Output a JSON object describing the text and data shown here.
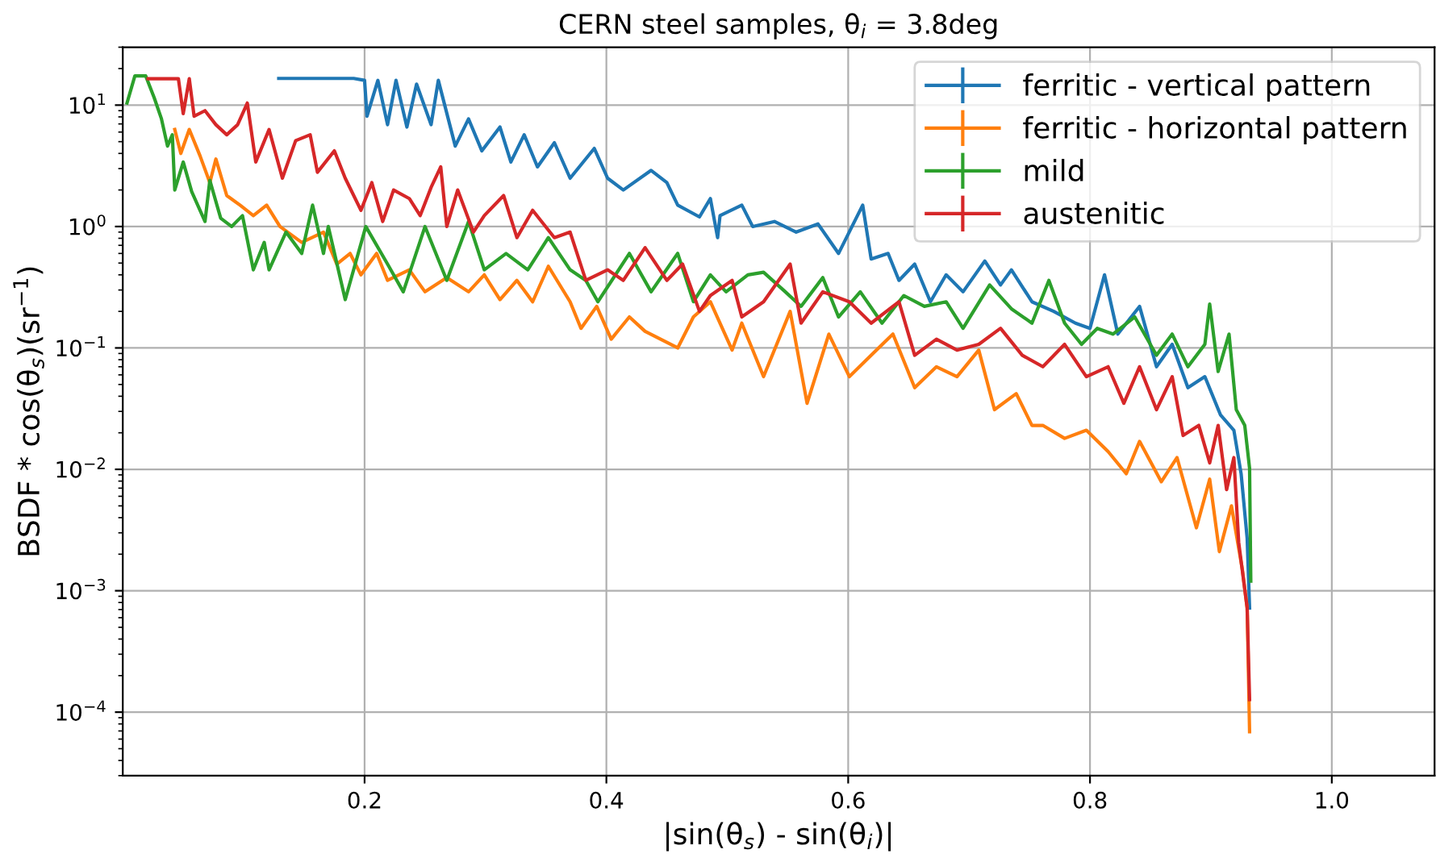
{
  "chart_data": {
    "type": "line",
    "title": "CERN steel samples, θ$_{i}$ = 3.8deg",
    "xlabel": "|sin(θ$_{s}$) - sin(θ$_{i}$)|",
    "ylabel": "BSDF * cos(θ$_{s}$)(sr$^{−1}$)",
    "log": "y",
    "xlim": [
      0.0,
      1.085
    ],
    "xticks": [
      0.2,
      0.4,
      0.6,
      0.8,
      {
        "value": 1,
        "label": "1.0"
      }
    ],
    "ylim": [
      3e-05,
      30
    ],
    "yticks": [
      {
        "value": 0.0001,
        "label": "10$^{−4}$"
      },
      {
        "value": 0.001,
        "label": "10$^{−3}$"
      },
      {
        "value": 0.01,
        "label": "10$^{−2}$"
      },
      {
        "value": 0.1,
        "label": "10$^{−1}$"
      },
      {
        "value": 1,
        "label": "10$^{0}$"
      },
      {
        "value": 10,
        "label": "10$^{1}$"
      }
    ],
    "grid": true,
    "legend": "top right",
    "series": [
      {
        "name": "ferritic - vertical pattern",
        "color": "#1f77b4",
        "x": [
          0.129,
          0.191,
          0.2,
          0.202,
          0.211,
          0.219,
          0.226,
          0.235,
          0.243,
          0.255,
          0.261,
          0.275,
          0.286,
          0.297,
          0.312,
          0.321,
          0.332,
          0.343,
          0.357,
          0.37,
          0.39,
          0.401,
          0.414,
          0.437,
          0.45,
          0.459,
          0.477,
          0.486,
          0.492,
          0.494,
          0.512,
          0.521,
          0.539,
          0.557,
          0.575,
          0.592,
          0.612,
          0.619,
          0.633,
          0.642,
          0.655,
          0.668,
          0.681,
          0.695,
          0.713,
          0.726,
          0.735,
          0.752,
          0.77,
          0.788,
          0.8,
          0.812,
          0.823,
          0.841,
          0.855,
          0.868,
          0.881,
          0.895,
          0.908,
          0.919,
          0.925,
          0.93,
          0.932
        ],
        "values": [
          16.6,
          16.6,
          16,
          8.1,
          16,
          6.9,
          16,
          6.6,
          14.9,
          6.9,
          16,
          4.6,
          7.7,
          4.2,
          6.6,
          3.4,
          5.7,
          3.1,
          4.9,
          2.5,
          4.4,
          2.5,
          2.0,
          2.9,
          2.3,
          1.5,
          1.2,
          1.7,
          0.81,
          1.23,
          1.5,
          1.0,
          1.1,
          0.9,
          1.05,
          0.6,
          1.5,
          0.54,
          0.6,
          0.36,
          0.49,
          0.24,
          0.4,
          0.29,
          0.52,
          0.33,
          0.44,
          0.24,
          0.2,
          0.16,
          0.145,
          0.4,
          0.13,
          0.22,
          0.07,
          0.107,
          0.047,
          0.058,
          0.028,
          0.021,
          0.0092,
          0.0027,
          0.00072
        ]
      },
      {
        "name": "ferritic - horizontal pattern",
        "color": "#ff7f0e",
        "x": [
          0.043,
          0.048,
          0.055,
          0.064,
          0.072,
          0.077,
          0.086,
          0.097,
          0.108,
          0.119,
          0.13,
          0.148,
          0.166,
          0.177,
          0.188,
          0.197,
          0.21,
          0.219,
          0.237,
          0.25,
          0.268,
          0.286,
          0.299,
          0.312,
          0.326,
          0.339,
          0.352,
          0.37,
          0.379,
          0.392,
          0.404,
          0.419,
          0.432,
          0.459,
          0.472,
          0.486,
          0.504,
          0.512,
          0.53,
          0.552,
          0.566,
          0.584,
          0.601,
          0.619,
          0.637,
          0.655,
          0.673,
          0.69,
          0.708,
          0.721,
          0.739,
          0.752,
          0.761,
          0.779,
          0.797,
          0.815,
          0.83,
          0.841,
          0.859,
          0.872,
          0.888,
          0.899,
          0.907,
          0.917,
          0.926,
          0.93,
          0.932
        ],
        "values": [
          6.3,
          4.0,
          6.3,
          3.8,
          2.3,
          3.6,
          1.8,
          1.5,
          1.23,
          1.5,
          1.0,
          0.74,
          0.9,
          0.49,
          0.6,
          0.4,
          0.6,
          0.36,
          0.44,
          0.29,
          0.38,
          0.29,
          0.4,
          0.25,
          0.36,
          0.24,
          0.47,
          0.24,
          0.145,
          0.22,
          0.118,
          0.18,
          0.137,
          0.1,
          0.18,
          0.24,
          0.096,
          0.16,
          0.058,
          0.2,
          0.035,
          0.13,
          0.058,
          0.087,
          0.13,
          0.047,
          0.07,
          0.058,
          0.096,
          0.031,
          0.042,
          0.023,
          0.023,
          0.018,
          0.021,
          0.014,
          0.0092,
          0.017,
          0.0079,
          0.0125,
          0.0033,
          0.0083,
          0.0021,
          0.005,
          0.0015,
          0.00072,
          6.9e-05
        ]
      },
      {
        "name": "mild",
        "color": "#2ca02c",
        "x": [
          0.0035,
          0.01,
          0.019,
          0.026,
          0.032,
          0.037,
          0.041,
          0.043,
          0.05,
          0.057,
          0.068,
          0.072,
          0.081,
          0.09,
          0.099,
          0.108,
          0.117,
          0.121,
          0.135,
          0.148,
          0.157,
          0.166,
          0.17,
          0.184,
          0.201,
          0.219,
          0.232,
          0.25,
          0.268,
          0.286,
          0.299,
          0.317,
          0.335,
          0.352,
          0.37,
          0.383,
          0.393,
          0.419,
          0.437,
          0.459,
          0.472,
          0.486,
          0.499,
          0.517,
          0.53,
          0.548,
          0.561,
          0.579,
          0.592,
          0.61,
          0.628,
          0.646,
          0.663,
          0.681,
          0.695,
          0.717,
          0.735,
          0.752,
          0.766,
          0.779,
          0.793,
          0.806,
          0.819,
          0.837,
          0.855,
          0.868,
          0.881,
          0.895,
          0.899,
          0.906,
          0.915,
          0.921,
          0.928,
          0.932,
          0.933
        ],
        "values": [
          10.4,
          17.4,
          17.4,
          11.5,
          7.7,
          4.6,
          5.7,
          2.0,
          3.4,
          1.94,
          1.1,
          2.4,
          1.17,
          1.0,
          1.23,
          0.44,
          0.74,
          0.44,
          0.9,
          0.6,
          1.5,
          0.6,
          1.0,
          0.25,
          1.0,
          0.49,
          0.29,
          1.0,
          0.36,
          1.1,
          0.44,
          0.6,
          0.44,
          0.81,
          0.44,
          0.36,
          0.24,
          0.6,
          0.29,
          0.6,
          0.24,
          0.4,
          0.29,
          0.4,
          0.42,
          0.29,
          0.22,
          0.38,
          0.18,
          0.29,
          0.16,
          0.27,
          0.22,
          0.24,
          0.145,
          0.33,
          0.21,
          0.16,
          0.36,
          0.16,
          0.107,
          0.145,
          0.13,
          0.18,
          0.087,
          0.13,
          0.07,
          0.107,
          0.23,
          0.064,
          0.13,
          0.031,
          0.023,
          0.0102,
          0.0012
        ]
      },
      {
        "name": "austenitic",
        "color": "#d62728",
        "x": [
          0.021,
          0.046,
          0.05,
          0.055,
          0.059,
          0.068,
          0.077,
          0.086,
          0.095,
          0.103,
          0.11,
          0.121,
          0.132,
          0.143,
          0.155,
          0.161,
          0.175,
          0.184,
          0.197,
          0.206,
          0.215,
          0.224,
          0.237,
          0.246,
          0.255,
          0.263,
          0.268,
          0.277,
          0.29,
          0.299,
          0.315,
          0.326,
          0.339,
          0.357,
          0.37,
          0.383,
          0.401,
          0.414,
          0.432,
          0.45,
          0.463,
          0.477,
          0.486,
          0.504,
          0.512,
          0.53,
          0.552,
          0.561,
          0.579,
          0.601,
          0.619,
          0.642,
          0.655,
          0.673,
          0.69,
          0.708,
          0.726,
          0.744,
          0.761,
          0.779,
          0.797,
          0.815,
          0.828,
          0.841,
          0.855,
          0.868,
          0.877,
          0.89,
          0.899,
          0.906,
          0.913,
          0.919,
          0.923,
          0.93,
          0.932
        ],
        "values": [
          16.5,
          16.5,
          8.5,
          16.5,
          8.1,
          9.0,
          6.9,
          5.7,
          6.9,
          10.4,
          3.4,
          6.3,
          2.5,
          5.1,
          5.7,
          2.8,
          4.2,
          2.5,
          1.36,
          2.3,
          1.1,
          2.0,
          1.7,
          1.23,
          2.1,
          3.1,
          1.0,
          2.0,
          0.9,
          1.23,
          1.8,
          0.81,
          1.36,
          0.81,
          0.9,
          0.36,
          0.44,
          0.36,
          0.67,
          0.36,
          0.49,
          0.2,
          0.27,
          0.36,
          0.18,
          0.24,
          0.49,
          0.16,
          0.29,
          0.24,
          0.16,
          0.24,
          0.087,
          0.118,
          0.096,
          0.107,
          0.145,
          0.087,
          0.07,
          0.107,
          0.058,
          0.07,
          0.035,
          0.07,
          0.031,
          0.058,
          0.019,
          0.023,
          0.0113,
          0.023,
          0.0068,
          0.0125,
          0.0025,
          0.00072,
          0.000127
        ]
      }
    ]
  }
}
